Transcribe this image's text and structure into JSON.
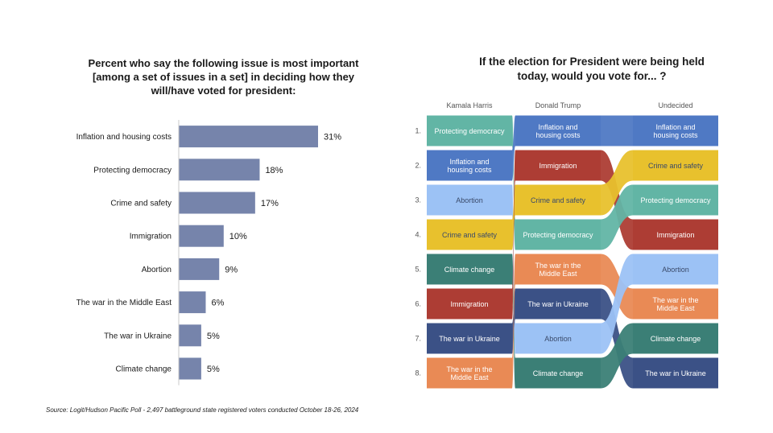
{
  "left_chart": {
    "title_lines": [
      "Percent who say the following issue is most important",
      "[among a set of issues in a set] in deciding how they",
      "will/have voted for president:"
    ]
  },
  "right_chart": {
    "title_lines": [
      "If the election for President were being held",
      "today, would you vote for... ?"
    ]
  },
  "source": "Source:  Logit/Hudson Pacific Poll - 2,497 battleground state registered voters conducted October 18-26, 2024",
  "colors": {
    "bar": "#7684ab",
    "Protecting democracy": "#62b5a5",
    "Inflation and housing costs": "#4f79c4",
    "Abortion": "#9cc2f5",
    "Crime and safety": "#e8c12d",
    "Climate change": "#3b7f76",
    "Immigration": "#ad3d34",
    "The war in Ukraine": "#3b5186",
    "The war in the Middle East": "#e98a55"
  },
  "chart_data": [
    {
      "type": "bar",
      "orientation": "horizontal",
      "title": "Percent who say the following issue is most important [among a set of issues in a set] in deciding how they will/have voted for president:",
      "categories": [
        "Inflation and housing costs",
        "Protecting democracy",
        "Crime and safety",
        "Immigration",
        "Abortion",
        "The war in the Middle East",
        "The war in Ukraine",
        "Climate change"
      ],
      "values": [
        31,
        18,
        17,
        10,
        9,
        6,
        5,
        5
      ],
      "value_labels": [
        "31%",
        "18%",
        "17%",
        "10%",
        "9%",
        "6%",
        "5%",
        "5%"
      ],
      "xlim": [
        0,
        31
      ]
    },
    {
      "type": "table",
      "subtype": "bump",
      "title": "If the election for President were being held today, would you vote for... ?",
      "ranks": [
        "1.",
        "2.",
        "3.",
        "4.",
        "5.",
        "6.",
        "7.",
        "8."
      ],
      "columns": [
        {
          "name": "Kamala Harris",
          "items": [
            "Protecting democracy",
            "Inflation and housing costs",
            "Abortion",
            "Crime and safety",
            "Climate change",
            "Immigration",
            "The war in Ukraine",
            "The war in the Middle East"
          ]
        },
        {
          "name": "Donald Trump",
          "items": [
            "Inflation and housing costs",
            "Immigration",
            "Crime and safety",
            "Protecting democracy",
            "The war in the Middle East",
            "The war in Ukraine",
            "Abortion",
            "Climate change"
          ]
        },
        {
          "name": "Undecided",
          "items": [
            "Inflation and housing costs",
            "Crime and safety",
            "Protecting democracy",
            "Immigration",
            "Abortion",
            "The war in the Middle East",
            "Climate change",
            "The war in Ukraine"
          ]
        }
      ]
    }
  ]
}
